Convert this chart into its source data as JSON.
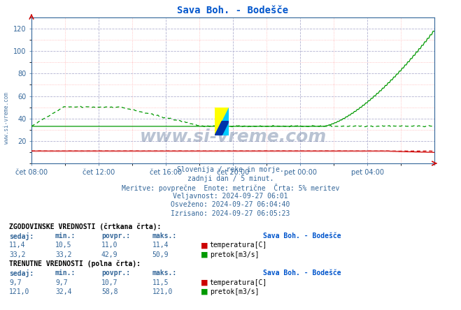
{
  "title": "Sava Boh. - Bodešče",
  "title_color": "#0055cc",
  "bg_color": "#ffffff",
  "plot_bg_color": "#ffffff",
  "ylim": [
    0,
    130
  ],
  "yticks": [
    20,
    40,
    60,
    80,
    100,
    120
  ],
  "xlabel_times": [
    "čet 08:00",
    "čet 12:00",
    "čet 16:00",
    "čet 20:00",
    "pet 00:00",
    "pet 04:00"
  ],
  "watermark": "www.si-vreme.com",
  "watermark_color": "#1a3a6e",
  "footnote_lines": [
    "Slovenija / reke in morje.",
    "zadnji dan / 5 minut.",
    "Meritve: povprečne  Enote: metrične  Črta: 5% meritev",
    "Veljavnost: 2024-09-27 06:01",
    "Osveženo: 2024-09-27 06:04:40",
    "Izrisano: 2024-09-27 06:05:23"
  ],
  "footnote_color": "#336699",
  "table_header1": "ZGODOVINSKE VREDNOSTI (črtkana črta):",
  "table_header2": "TRENUTNE VREDNOSTI (polna črta):",
  "table_cols": [
    "sedaj:",
    "min.:",
    "povpr.:",
    "maks.:"
  ],
  "hist_temp_vals": [
    "11,4",
    "10,5",
    "11,0",
    "11,4"
  ],
  "hist_flow_vals": [
    "33,2",
    "33,2",
    "42,9",
    "50,9"
  ],
  "curr_temp_vals": [
    "9,7",
    "9,7",
    "10,7",
    "11,5"
  ],
  "curr_flow_vals": [
    "121,0",
    "32,4",
    "58,8",
    "121,0"
  ],
  "station_name": "Sava Boh. - Bodešče",
  "legend_temp_color": "#cc0000",
  "legend_flow_color": "#009900",
  "n_points": 288,
  "left_label": "www.si-vreme.com"
}
